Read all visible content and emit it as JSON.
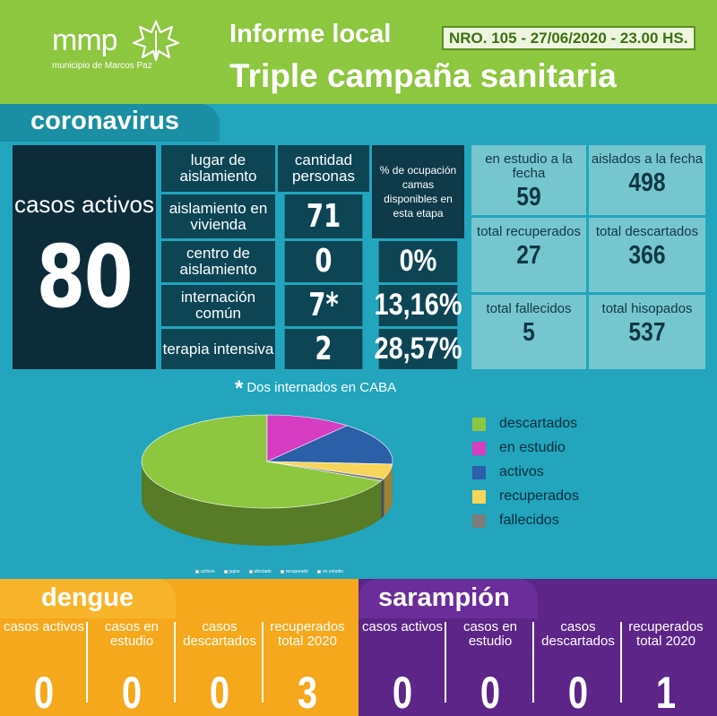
{
  "header": {
    "logo_text": "mmp",
    "logo_subtitle": "municipio de Marcos Paz",
    "title": "Informe local",
    "badge": "NRO. 105 - 27/06/2020 - 23.00 HS.",
    "subtitle": "Triple campaña sanitaria"
  },
  "coronavirus": {
    "title": "coronavirus",
    "active_cases": {
      "label": "casos activos",
      "value": "80"
    },
    "table": {
      "headers": [
        "lugar de aislamiento",
        "cantidad personas",
        "% de ocupación camas disponibles en esta etapa"
      ],
      "rows": [
        {
          "place": "aislamiento en vivienda",
          "count": "71",
          "occupancy": ""
        },
        {
          "place": "centro de aislamiento",
          "count": "0",
          "occupancy": "0%"
        },
        {
          "place": "internación común",
          "count": "7*",
          "occupancy": "13,16%"
        },
        {
          "place": "terapia intensiva",
          "count": "2",
          "occupancy": "28,57%"
        }
      ]
    },
    "stats": [
      {
        "label": "en estudio a la fecha",
        "value": "59"
      },
      {
        "label": "aislados a la fecha",
        "value": "498"
      },
      {
        "label": "total recuperados",
        "value": "27"
      },
      {
        "label": "total descartados",
        "value": "366"
      },
      {
        "label": "total fallecidos",
        "value": "5"
      },
      {
        "label": "total hisopados",
        "value": "537"
      }
    ],
    "footnote_star": "*",
    "footnote": "Dos internados en CABA"
  },
  "chart_data": {
    "type": "pie",
    "title": "",
    "legend_position": "right",
    "slices": [
      {
        "name": "descartados",
        "value": 366,
        "color": "#8dc63f"
      },
      {
        "name": "en estudio",
        "value": 59,
        "color": "#d63dc2"
      },
      {
        "name": "activos",
        "value": 80,
        "color": "#2b5fa8"
      },
      {
        "name": "recuperados",
        "value": 27,
        "color": "#f6d55a"
      },
      {
        "name": "fallecidos",
        "value": 5,
        "color": "#7d7d7d"
      }
    ],
    "mini_legend": [
      "activos",
      "jugos",
      "afectado",
      "recuperado",
      "en estudio"
    ]
  },
  "dengue": {
    "title": "dengue",
    "columns": [
      {
        "label": "casos activos",
        "value": "0"
      },
      {
        "label": "casos en estudio",
        "value": "0"
      },
      {
        "label": "casos descartados",
        "value": "0"
      },
      {
        "label": "recuperados total 2020",
        "value": "3"
      }
    ]
  },
  "sarampion": {
    "title": "sarampión",
    "columns": [
      {
        "label": "casos activos",
        "value": "0"
      },
      {
        "label": "casos en estudio",
        "value": "0"
      },
      {
        "label": "casos descartados",
        "value": "0"
      },
      {
        "label": "recuperados total 2020",
        "value": "1"
      }
    ]
  }
}
